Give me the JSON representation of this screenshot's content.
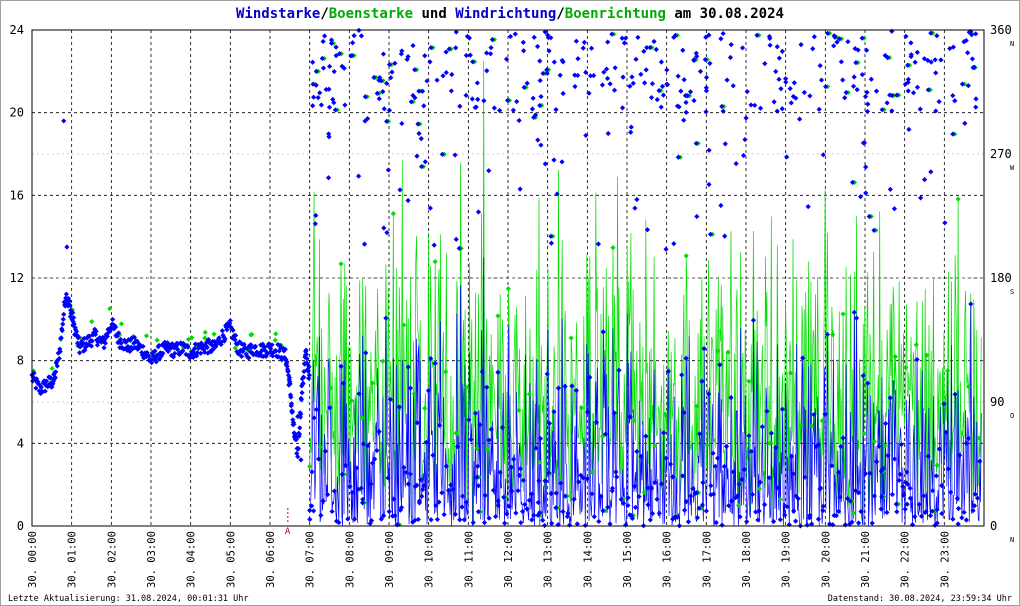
{
  "chart_data": {
    "type": "scatter",
    "title_parts": [
      {
        "text": "Windstarke",
        "color": "#0000cc"
      },
      {
        "text": "/",
        "color": "#000000"
      },
      {
        "text": "Boenstarke",
        "color": "#00aa00"
      },
      {
        "text": " und ",
        "color": "#000000"
      },
      {
        "text": "Windrichtung",
        "color": "#0000cc"
      },
      {
        "text": "/",
        "color": "#000000"
      },
      {
        "text": "Boenrichtung",
        "color": "#00aa00"
      },
      {
        "text": " am 30.08.2024",
        "color": "#000000"
      }
    ],
    "colors": {
      "wind": "#0000ff",
      "gust": "#00dd00",
      "axis": "#000000",
      "grid": "#000000",
      "border": "#a0a0a0",
      "marker": "#cc0000"
    },
    "x_range_hours": [
      0,
      24
    ],
    "x_ticks": [
      "30. 00:00",
      "30. 01:00",
      "30. 02:00",
      "30. 03:00",
      "30. 04:00",
      "30. 05:00",
      "30. 06:00",
      "30. 07:00",
      "30. 08:00",
      "30. 09:00",
      "30. 10:00",
      "30. 11:00",
      "30. 12:00",
      "30. 13:00",
      "30. 14:00",
      "30. 15:00",
      "30. 16:00",
      "30. 17:00",
      "30. 18:00",
      "30. 19:00",
      "30. 20:00",
      "30. 21:00",
      "30. 22:00",
      "30. 23:00"
    ],
    "left_axis": {
      "range": [
        0,
        24
      ],
      "ticks": [
        "0",
        "4",
        "8",
        "12",
        "16",
        "20",
        "24"
      ]
    },
    "right_axis": {
      "range": [
        0,
        360
      ],
      "ticks": [
        {
          "value": 0,
          "label": "0",
          "dir": "N"
        },
        {
          "value": 90,
          "label": "90",
          "dir": "O"
        },
        {
          "value": 180,
          "label": "180",
          "dir": "S"
        },
        {
          "value": 270,
          "label": "270",
          "dir": "W"
        },
        {
          "value": 360,
          "label": "360",
          "dir": "N"
        }
      ]
    },
    "marker": {
      "hour": 6.45,
      "label": "A"
    },
    "wind_speed_series": {
      "name": "Windstarke",
      "points": [
        [
          0,
          7.2
        ],
        [
          0.2,
          6.6
        ],
        [
          0.4,
          6.9
        ],
        [
          0.55,
          7.0
        ],
        [
          0.7,
          8.5
        ],
        [
          0.85,
          11.2
        ],
        [
          0.95,
          10.6
        ],
        [
          1.05,
          9.8
        ],
        [
          1.2,
          8.6
        ],
        [
          1.4,
          8.9
        ],
        [
          1.6,
          9.2
        ],
        [
          1.8,
          8.8
        ],
        [
          2.0,
          9.8
        ],
        [
          2.2,
          9.0
        ],
        [
          2.4,
          8.7
        ],
        [
          2.6,
          8.8
        ],
        [
          2.8,
          8.5
        ],
        [
          3.0,
          8.0
        ],
        [
          3.2,
          8.4
        ],
        [
          3.4,
          8.6
        ],
        [
          3.6,
          8.5
        ],
        [
          3.8,
          8.6
        ],
        [
          4.0,
          8.4
        ],
        [
          4.2,
          8.6
        ],
        [
          4.4,
          8.7
        ],
        [
          4.6,
          8.6
        ],
        [
          4.8,
          9.2
        ],
        [
          5.0,
          9.6
        ],
        [
          5.2,
          8.6
        ],
        [
          5.4,
          8.4
        ],
        [
          5.6,
          8.6
        ],
        [
          5.8,
          8.5
        ],
        [
          6.0,
          8.6
        ],
        [
          6.2,
          8.5
        ],
        [
          6.4,
          8.2
        ],
        [
          6.5,
          6.8
        ],
        [
          6.6,
          4.6
        ],
        [
          6.7,
          3.5
        ],
        [
          6.8,
          6.5
        ],
        [
          6.9,
          8.3
        ],
        [
          7.0,
          7.2
        ]
      ],
      "scatter_outliers": [
        [
          0.8,
          19.6
        ],
        [
          0.88,
          13.5
        ],
        [
          6.7,
          5.3
        ],
        [
          6.78,
          3.2
        ]
      ]
    },
    "after_0700": {
      "wind_speed_band_typical": [
        0,
        8
      ],
      "wind_speed_extreme_max": 13,
      "gust_band_typical": [
        0,
        13
      ],
      "gust_extreme_max": 22.5,
      "direction_clusters_deg": [
        0,
        30,
        330,
        360
      ]
    }
  }
}
